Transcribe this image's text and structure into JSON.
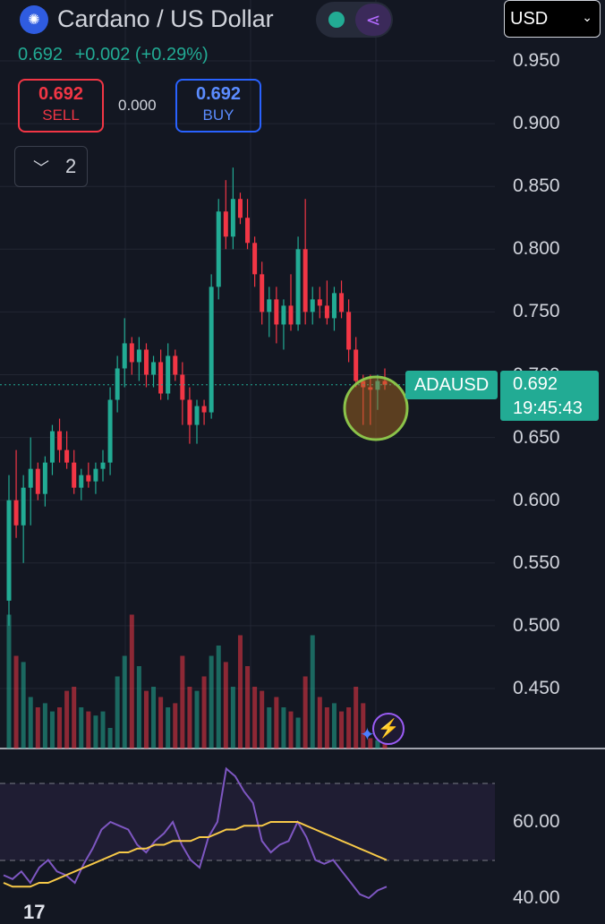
{
  "header": {
    "title": "Cardano / US Dollar",
    "price": "0.692",
    "change": "+0.002",
    "change_pct": "(+0.29%)",
    "currency": "USD"
  },
  "trade": {
    "sell_price": "0.692",
    "sell_label": "SELL",
    "spread": "0.000",
    "buy_price": "0.692",
    "buy_label": "BUY"
  },
  "indicators": {
    "collapsed_count": "2"
  },
  "price_tag": {
    "symbol": "ADAUSD",
    "value": "0.692",
    "countdown": "19:45:43"
  },
  "colors": {
    "up": "#22ab94",
    "down": "#f23645",
    "rsi": "#7e57c2",
    "rsi_ma": "#f7c948",
    "highlight": "#8bc34a"
  },
  "chart_data": [
    {
      "type": "candlestick",
      "y_ticks": [
        "0.950",
        "0.900",
        "0.850",
        "0.800",
        "0.750",
        "0.700",
        "0.650",
        "0.600",
        "0.550",
        "0.500",
        "0.450"
      ],
      "ylim": [
        0.43,
        0.96
      ],
      "last_price": 0.692,
      "candles": [
        [
          0.52,
          0.62,
          0.5,
          0.6
        ],
        [
          0.6,
          0.64,
          0.57,
          0.58
        ],
        [
          0.58,
          0.62,
          0.55,
          0.61
        ],
        [
          0.61,
          0.65,
          0.58,
          0.625
        ],
        [
          0.625,
          0.63,
          0.6,
          0.605
        ],
        [
          0.605,
          0.635,
          0.595,
          0.63
        ],
        [
          0.63,
          0.66,
          0.62,
          0.655
        ],
        [
          0.655,
          0.665,
          0.63,
          0.64
        ],
        [
          0.64,
          0.655,
          0.625,
          0.63
        ],
        [
          0.63,
          0.64,
          0.605,
          0.61
        ],
        [
          0.61,
          0.625,
          0.6,
          0.62
        ],
        [
          0.62,
          0.63,
          0.61,
          0.615
        ],
        [
          0.615,
          0.63,
          0.605,
          0.625
        ],
        [
          0.625,
          0.64,
          0.615,
          0.63
        ],
        [
          0.63,
          0.69,
          0.62,
          0.68
        ],
        [
          0.68,
          0.715,
          0.67,
          0.705
        ],
        [
          0.705,
          0.745,
          0.69,
          0.725
        ],
        [
          0.725,
          0.73,
          0.7,
          0.71
        ],
        [
          0.71,
          0.73,
          0.695,
          0.72
        ],
        [
          0.72,
          0.725,
          0.69,
          0.7
        ],
        [
          0.7,
          0.715,
          0.69,
          0.71
        ],
        [
          0.71,
          0.72,
          0.68,
          0.685
        ],
        [
          0.685,
          0.725,
          0.68,
          0.715
        ],
        [
          0.715,
          0.72,
          0.695,
          0.7
        ],
        [
          0.7,
          0.71,
          0.66,
          0.68
        ],
        [
          0.68,
          0.69,
          0.645,
          0.66
        ],
        [
          0.66,
          0.68,
          0.645,
          0.675
        ],
        [
          0.675,
          0.68,
          0.66,
          0.67
        ],
        [
          0.67,
          0.78,
          0.665,
          0.77
        ],
        [
          0.77,
          0.84,
          0.76,
          0.83
        ],
        [
          0.83,
          0.855,
          0.8,
          0.81
        ],
        [
          0.81,
          0.865,
          0.8,
          0.84
        ],
        [
          0.84,
          0.845,
          0.82,
          0.825
        ],
        [
          0.825,
          0.84,
          0.8,
          0.805
        ],
        [
          0.805,
          0.81,
          0.77,
          0.78
        ],
        [
          0.78,
          0.79,
          0.74,
          0.75
        ],
        [
          0.75,
          0.77,
          0.73,
          0.76
        ],
        [
          0.76,
          0.77,
          0.725,
          0.74
        ],
        [
          0.74,
          0.76,
          0.72,
          0.755
        ],
        [
          0.755,
          0.78,
          0.735,
          0.74
        ],
        [
          0.74,
          0.81,
          0.735,
          0.8
        ],
        [
          0.8,
          0.84,
          0.74,
          0.75
        ],
        [
          0.75,
          0.77,
          0.74,
          0.76
        ],
        [
          0.76,
          0.77,
          0.745,
          0.755
        ],
        [
          0.755,
          0.775,
          0.74,
          0.745
        ],
        [
          0.745,
          0.77,
          0.735,
          0.765
        ],
        [
          0.765,
          0.775,
          0.745,
          0.75
        ],
        [
          0.75,
          0.76,
          0.71,
          0.72
        ],
        [
          0.72,
          0.73,
          0.69,
          0.695
        ],
        [
          0.695,
          0.7,
          0.66,
          0.69
        ],
        [
          0.69,
          0.7,
          0.66,
          0.688
        ],
        [
          0.688,
          0.7,
          0.672,
          0.695
        ],
        [
          0.695,
          0.705,
          0.688,
          0.692
        ]
      ]
    },
    {
      "type": "bar",
      "title": "Volume",
      "values": [
        0.65,
        0.45,
        0.42,
        0.25,
        0.2,
        0.22,
        0.18,
        0.2,
        0.28,
        0.3,
        0.2,
        0.18,
        0.16,
        0.18,
        0.1,
        0.35,
        0.45,
        0.65,
        0.4,
        0.28,
        0.3,
        0.25,
        0.2,
        0.22,
        0.45,
        0.3,
        0.28,
        0.35,
        0.45,
        0.5,
        0.42,
        0.3,
        0.55,
        0.4,
        0.3,
        0.28,
        0.2,
        0.25,
        0.2,
        0.18,
        0.15,
        0.35,
        0.55,
        0.25,
        0.2,
        0.22,
        0.18,
        0.2,
        0.3,
        0.22,
        0.05,
        0.04,
        0.03
      ]
    },
    {
      "type": "line",
      "title": "RSI",
      "y_ticks": [
        "60.00",
        "40.00"
      ],
      "ylim": [
        35,
        80
      ],
      "bands": [
        70,
        50
      ],
      "series": [
        {
          "name": "",
          "values": [
            46,
            45,
            47,
            44,
            48,
            50,
            47,
            46,
            44,
            49,
            53,
            58,
            60,
            59,
            58,
            54,
            52,
            55,
            57,
            60,
            54,
            50,
            48,
            56,
            60,
            74,
            72,
            68,
            65,
            55,
            52,
            54,
            55,
            60,
            56,
            50,
            49,
            50,
            47,
            44,
            41,
            40,
            42,
            43
          ]
        },
        {
          "name": "",
          "values": [
            44,
            43,
            43,
            43,
            44,
            44,
            45,
            46,
            47,
            48,
            49,
            50,
            51,
            52,
            52,
            53,
            53,
            54,
            54,
            55,
            55,
            55,
            56,
            56,
            57,
            58,
            58,
            59,
            59,
            59,
            60,
            60,
            60,
            60,
            59,
            58,
            57,
            56,
            55,
            54,
            53,
            52,
            51,
            50
          ]
        }
      ]
    }
  ]
}
